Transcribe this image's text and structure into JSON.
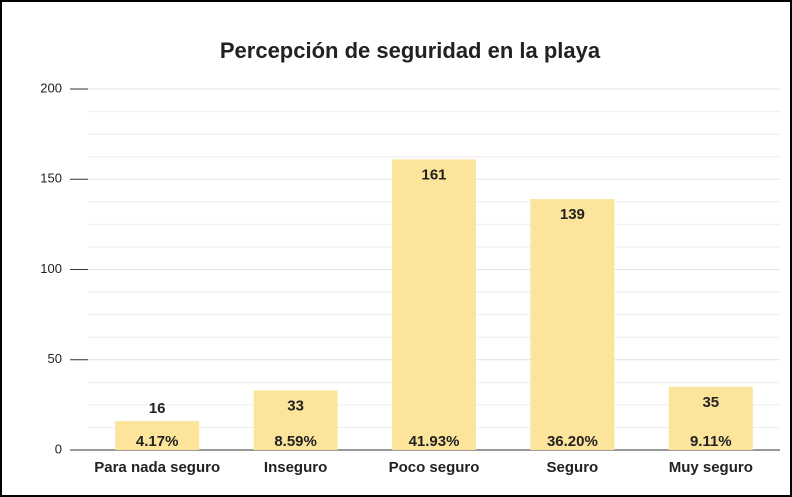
{
  "chart_data": {
    "type": "bar",
    "title": "Percepción de seguridad en la playa",
    "categories": [
      "Para nada seguro",
      "Inseguro",
      "Poco seguro",
      "Seguro",
      "Muy seguro"
    ],
    "values": [
      16,
      33,
      161,
      139,
      35
    ],
    "percentage_labels": [
      "4.17%",
      "8.59%",
      "41.93%",
      "36.20%",
      "9.11%"
    ],
    "color": "#fde49b",
    "ylim": [
      0,
      200
    ],
    "yticks": [
      0,
      50,
      100,
      150,
      200
    ],
    "grid": true
  }
}
